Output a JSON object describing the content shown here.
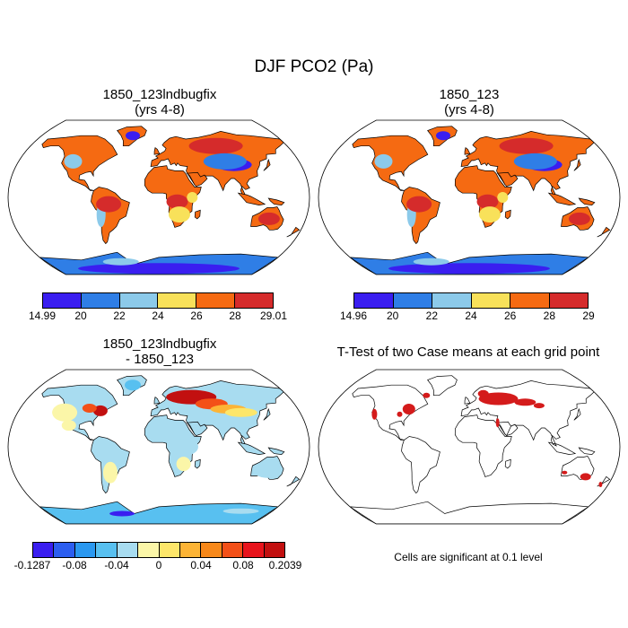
{
  "title": "DJF PCO2 (Pa)",
  "panels": [
    {
      "id": "a",
      "title": "1850_123lndbugfix",
      "subtitle": "(yrs 4-8)",
      "colorbar": {
        "colors": [
          "#3a1ef0",
          "#2f7ee6",
          "#8ccaea",
          "#f8e15a",
          "#f56a12",
          "#d52b2b"
        ],
        "labels": [
          "14.99",
          "20",
          "22",
          "24",
          "26",
          "28",
          "29.01"
        ]
      }
    },
    {
      "id": "b",
      "title": "1850_123",
      "subtitle": "(yrs 4-8)",
      "colorbar": {
        "colors": [
          "#3a1ef0",
          "#2f7ee6",
          "#8ccaea",
          "#f8e15a",
          "#f56a12",
          "#d52b2b"
        ],
        "labels": [
          "14.96",
          "20",
          "22",
          "24",
          "26",
          "28",
          "29"
        ]
      }
    },
    {
      "id": "c",
      "title": "1850_123lndbugfix",
      "subtitle": "- 1850_123",
      "colorbar": {
        "colors": [
          "#3a1ef0",
          "#2c5ef0",
          "#2a98f0",
          "#58c0f0",
          "#a8dcf0",
          "#fbf6a8",
          "#fde66a",
          "#fcb436",
          "#f7881a",
          "#f35018",
          "#e8141c",
          "#c21010"
        ],
        "labels": [
          "-0.1287",
          "-0.08",
          "-0.04",
          "0",
          "0.04",
          "0.08",
          "0.2039"
        ]
      }
    },
    {
      "id": "d",
      "title": "T-Test of two Case means at each grid point",
      "subtitle": "",
      "note": "Cells are significant at 0.1 level"
    }
  ]
}
